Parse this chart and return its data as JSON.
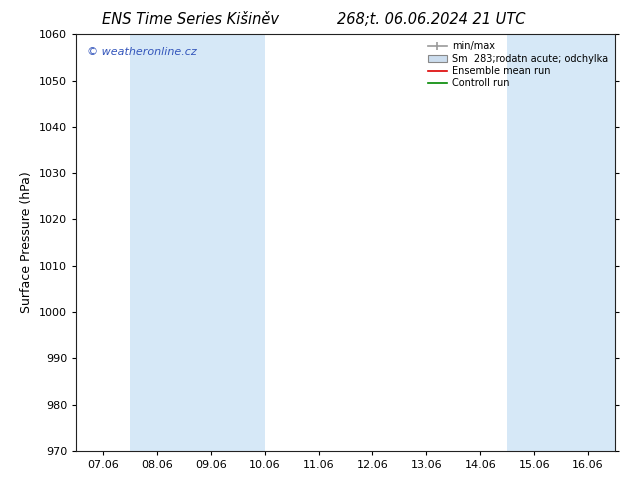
{
  "title1": "ENS Time Series Kišiněv",
  "title2": "268;t. 06.06.2024 21 UTC",
  "ylabel": "Surface Pressure (hPa)",
  "ylim": [
    970,
    1060
  ],
  "yticks": [
    970,
    980,
    990,
    1000,
    1010,
    1020,
    1030,
    1040,
    1050,
    1060
  ],
  "xlabels": [
    "07.06",
    "08.06",
    "09.06",
    "10.06",
    "11.06",
    "12.06",
    "13.06",
    "14.06",
    "15.06",
    "16.06"
  ],
  "background_color": "#ffffff",
  "plot_bg_color": "#ffffff",
  "shaded_color": "#d6e8f7",
  "legend_labels": [
    "min/max",
    "Sm  283;rodatn acute; odchylka",
    "Ensemble mean run",
    "Controll run"
  ],
  "legend_line_colors": [
    "#aaaaaa",
    "#aaaaaa",
    "#dd0000",
    "#008800"
  ],
  "watermark": "© weatheronline.cz",
  "watermark_color": "#3355bb",
  "title_fontsize": 10.5,
  "tick_fontsize": 8,
  "ylabel_fontsize": 9
}
